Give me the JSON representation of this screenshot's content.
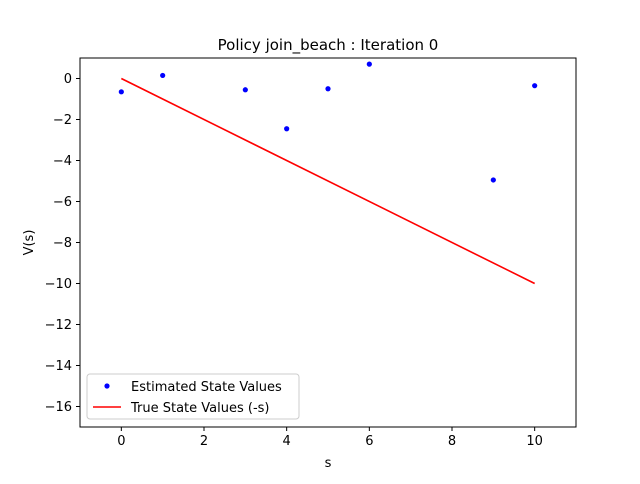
{
  "chart_data": {
    "type": "scatter",
    "title": "Policy join_beach : Iteration 0",
    "xlabel": "s",
    "ylabel": "V(s)",
    "xlim": [
      -1,
      11
    ],
    "ylim": [
      -17,
      1
    ],
    "xticks": [
      0,
      2,
      4,
      6,
      8,
      10
    ],
    "yticks": [
      0,
      -2,
      -4,
      -6,
      -8,
      -10,
      -12,
      -14,
      -16
    ],
    "xtick_labels": [
      "0",
      "2",
      "4",
      "6",
      "8",
      "10"
    ],
    "ytick_labels": [
      "0",
      "−2",
      "−4",
      "−6",
      "−8",
      "−10",
      "−12",
      "−14",
      "−16"
    ],
    "grid": false,
    "legend_position": "lower-left",
    "series": [
      {
        "name": "Estimated State Values",
        "kind": "scatter",
        "color": "#0000ff",
        "points": [
          {
            "x": 0,
            "y": -0.65
          },
          {
            "x": 1,
            "y": 0.15
          },
          {
            "x": 3,
            "y": -0.55
          },
          {
            "x": 4,
            "y": -2.45
          },
          {
            "x": 5,
            "y": -0.5
          },
          {
            "x": 6,
            "y": 0.7
          },
          {
            "x": 9,
            "y": -4.95
          },
          {
            "x": 10,
            "y": -0.35
          }
        ]
      },
      {
        "name": "True State Values (-s)",
        "kind": "line",
        "color": "#ff0000",
        "points": [
          {
            "x": 0,
            "y": 0
          },
          {
            "x": 10,
            "y": -10
          }
        ]
      }
    ]
  }
}
